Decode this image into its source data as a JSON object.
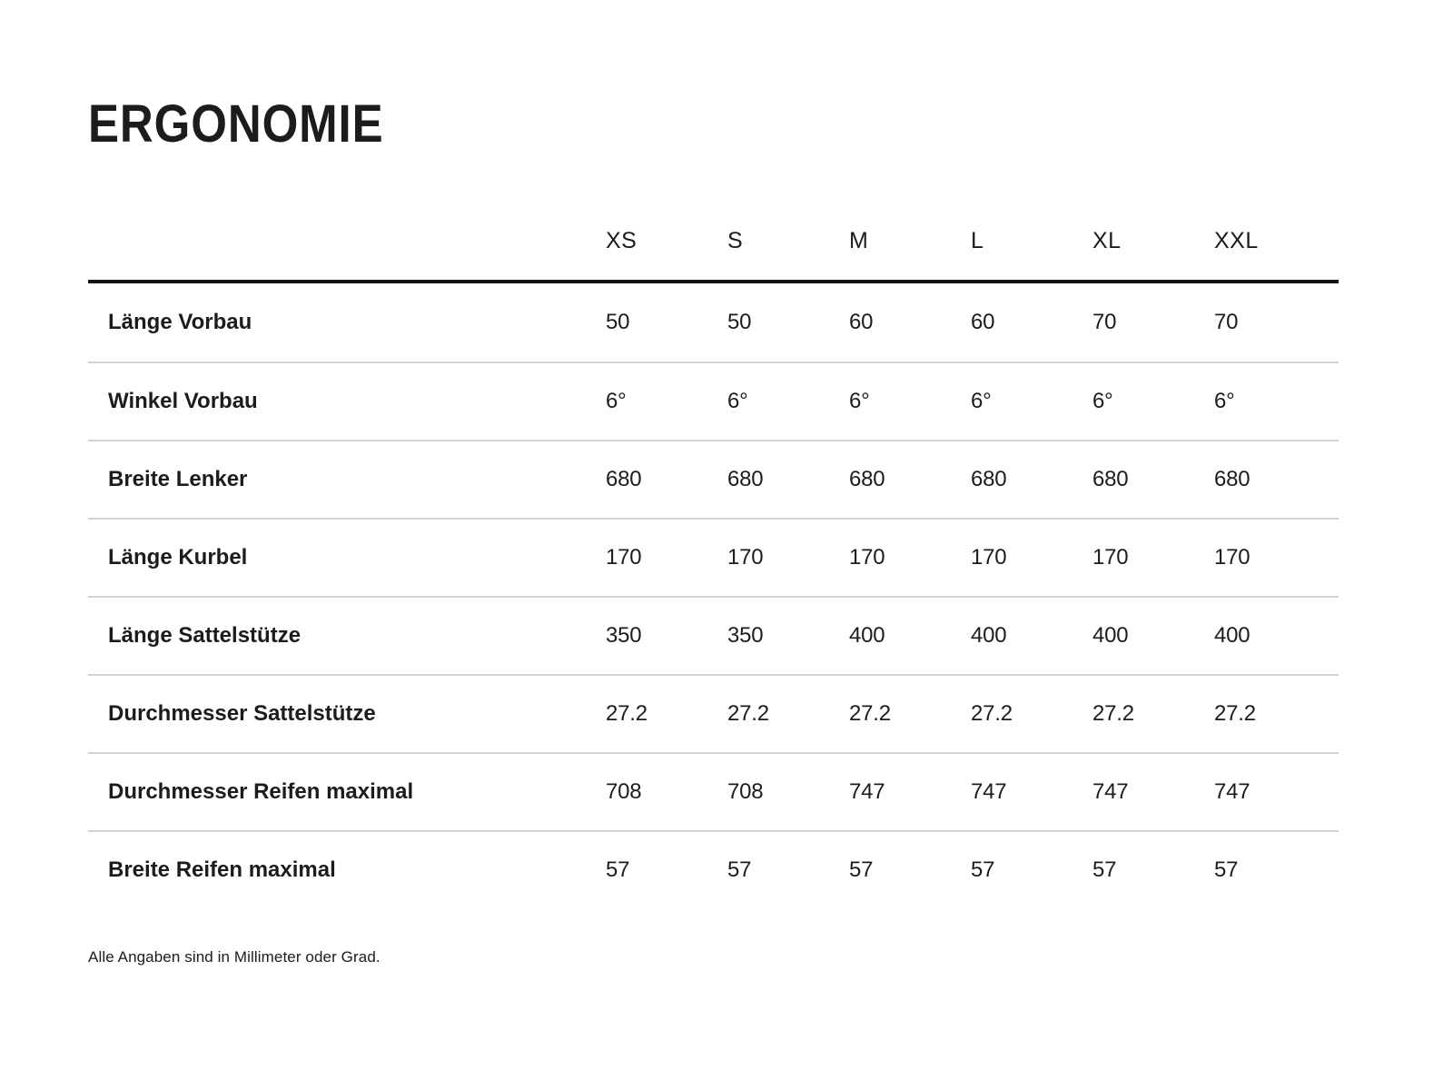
{
  "page": {
    "title": "ERGONOMIE",
    "footnote": "Alle Angaben sind in Millimeter oder Grad."
  },
  "table": {
    "columns": [
      "XS",
      "S",
      "M",
      "L",
      "XL",
      "XXL"
    ],
    "rows": [
      {
        "label": "Länge Vorbau",
        "values": [
          "50",
          "50",
          "60",
          "60",
          "70",
          "70"
        ]
      },
      {
        "label": "Winkel Vorbau",
        "values": [
          "6°",
          "6°",
          "6°",
          "6°",
          "6°",
          "6°"
        ]
      },
      {
        "label": "Breite Lenker",
        "values": [
          "680",
          "680",
          "680",
          "680",
          "680",
          "680"
        ]
      },
      {
        "label": "Länge Kurbel",
        "values": [
          "170",
          "170",
          "170",
          "170",
          "170",
          "170"
        ]
      },
      {
        "label": "Länge Sattelstütze",
        "values": [
          "350",
          "350",
          "400",
          "400",
          "400",
          "400"
        ]
      },
      {
        "label": "Durchmesser Sattelstütze",
        "values": [
          "27.2",
          "27.2",
          "27.2",
          "27.2",
          "27.2",
          "27.2"
        ]
      },
      {
        "label": "Durchmesser Reifen maximal",
        "values": [
          "708",
          "708",
          "747",
          "747",
          "747",
          "747"
        ]
      },
      {
        "label": "Breite Reifen maximal",
        "values": [
          "57",
          "57",
          "57",
          "57",
          "57",
          "57"
        ]
      }
    ]
  },
  "colors": {
    "text": "#1c1c1c",
    "separator": "#cfd2d6",
    "header_rule": "#141414",
    "background": "#ffffff"
  }
}
